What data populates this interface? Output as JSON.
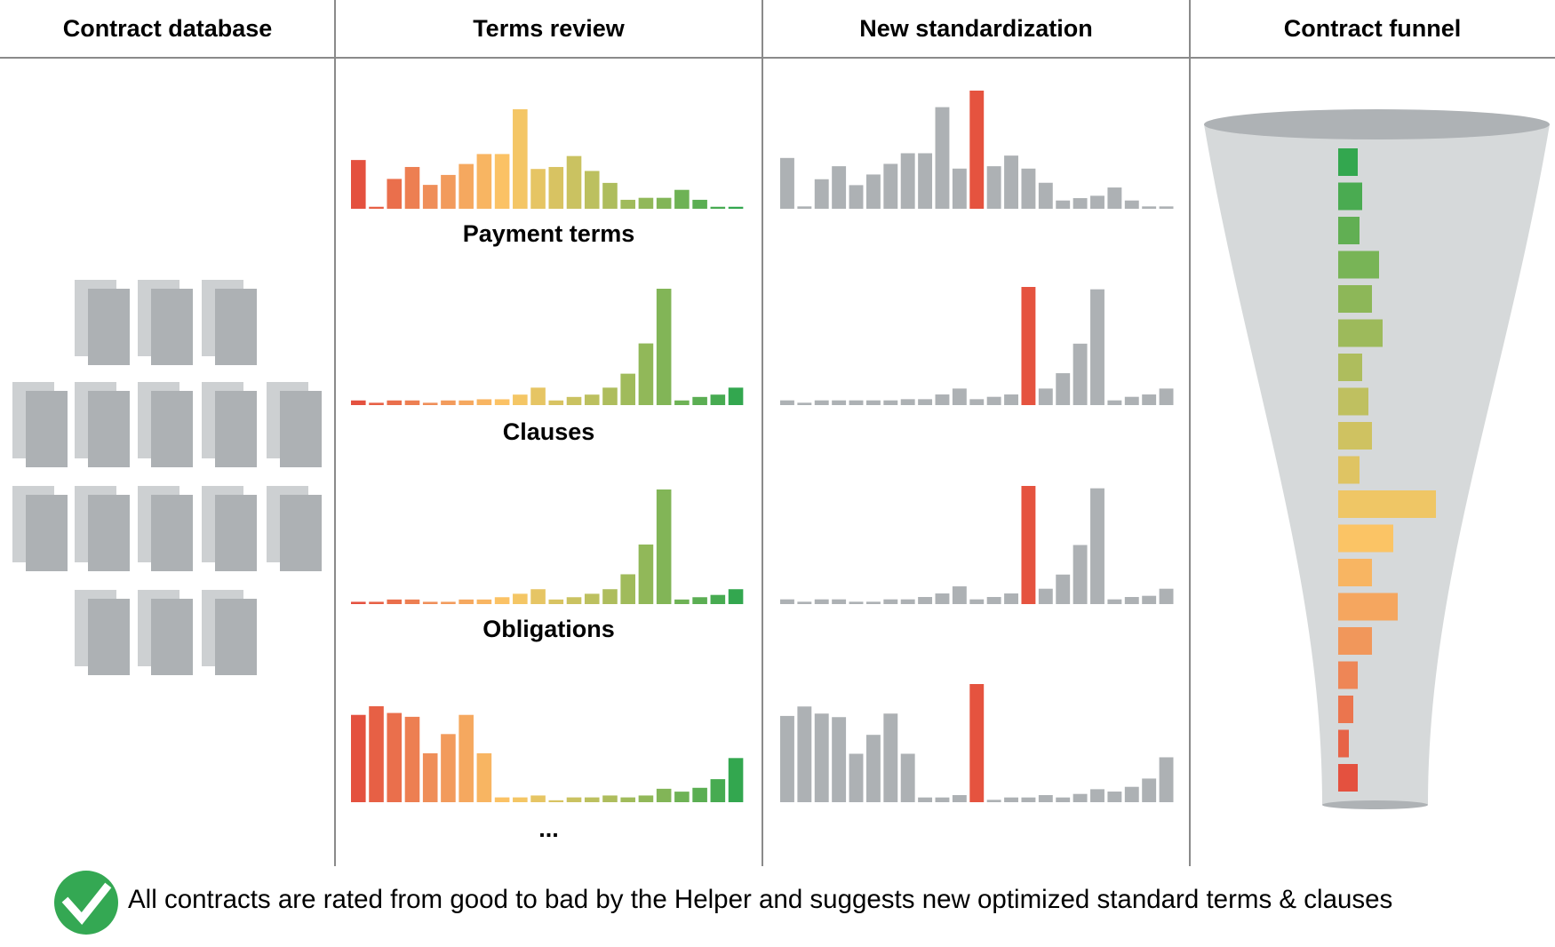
{
  "headers": [
    "Contract database",
    "Terms review",
    "New standardization",
    "Contract funnel"
  ],
  "footer": {
    "text": "All contracts are rated from good to bad by the Helper and suggests new optimized standard terms & clauses",
    "icon": "check-circle-icon"
  },
  "colors": {
    "divider": "#8A8A8A",
    "doc_back": "#CDD0D2",
    "doc_front": "#ADB1B4",
    "gray_bar": "#ADB1B4",
    "highlight": "#E5533F",
    "funnel_body": "#D6D9DA",
    "funnel_rim": "#AEB2B5",
    "check": "#34A853"
  },
  "palette": [
    "#E4513F",
    "#F0915A",
    "#FCC766",
    "#C2C160",
    "#86B657",
    "#33A74F"
  ],
  "contract_database": {
    "document_rows": [
      3,
      5,
      5,
      3
    ]
  },
  "chart_data": [
    {
      "type": "bar",
      "name": "terms-review",
      "rows": [
        {
          "label": "Payment terms",
          "values": [
            49,
            2,
            30,
            42,
            24,
            34,
            45,
            55,
            55,
            100,
            40,
            42,
            53,
            38,
            26,
            9,
            11,
            11,
            19,
            9,
            2,
            2
          ]
        },
        {
          "label": "Clauses",
          "values": [
            4,
            2,
            4,
            4,
            2,
            4,
            4,
            5,
            5,
            9,
            15,
            4,
            7,
            9,
            15,
            27,
            53,
            100,
            4,
            7,
            9,
            15
          ]
        },
        {
          "label": "Obligations",
          "values": [
            2,
            2,
            4,
            4,
            2,
            2,
            4,
            4,
            6,
            9,
            13,
            4,
            6,
            9,
            13,
            26,
            52,
            100,
            4,
            6,
            8,
            13
          ]
        },
        {
          "label": "...",
          "values": [
            91,
            100,
            93,
            89,
            51,
            71,
            91,
            51,
            5,
            5,
            7,
            2,
            5,
            5,
            7,
            5,
            7,
            14,
            11,
            15,
            24,
            46
          ]
        }
      ]
    },
    {
      "type": "bar",
      "name": "new-standardization",
      "rows": [
        {
          "values": [
            43,
            2,
            25,
            36,
            20,
            29,
            38,
            47,
            47,
            86,
            34,
            100,
            36,
            45,
            34,
            22,
            7,
            9,
            11,
            18,
            7,
            2,
            2
          ],
          "highlight_index": 11
        },
        {
          "values": [
            4,
            2,
            4,
            4,
            4,
            4,
            4,
            5,
            5,
            9,
            14,
            5,
            7,
            9,
            100,
            14,
            27,
            52,
            98,
            4,
            7,
            9,
            14
          ],
          "highlight_index": 14
        },
        {
          "values": [
            4,
            2,
            4,
            4,
            2,
            2,
            4,
            4,
            6,
            9,
            15,
            4,
            6,
            9,
            100,
            13,
            25,
            50,
            98,
            4,
            6,
            7,
            13
          ],
          "highlight_index": 14
        },
        {
          "values": [
            73,
            81,
            75,
            72,
            41,
            57,
            75,
            41,
            4,
            4,
            6,
            100,
            2,
            4,
            4,
            6,
            4,
            7,
            11,
            9,
            13,
            20,
            38
          ],
          "highlight_index": 11
        }
      ]
    },
    {
      "type": "bar",
      "name": "contract-funnel",
      "orientation": "horizontal",
      "order": "good-to-bad",
      "values": [
        22,
        27,
        24,
        46,
        38,
        50,
        27,
        34,
        38,
        24,
        110,
        62,
        38,
        67,
        38,
        22,
        17,
        12,
        22
      ]
    }
  ]
}
